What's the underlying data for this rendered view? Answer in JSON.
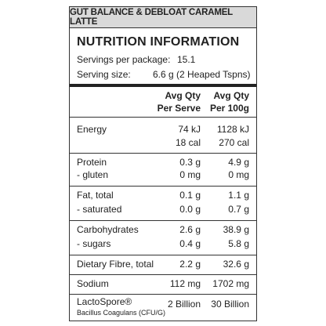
{
  "product_title": "GUT BALANCE & DEBLOAT CARAMEL LATTE",
  "heading": "NUTRITION INFORMATION",
  "servings": {
    "label": "Servings per package:",
    "value": "15.1"
  },
  "serving_size": {
    "label": "Serving size:",
    "value": "6.6 g  (2 Heaped Tspns)"
  },
  "columns": {
    "per_serve_line1": "Avg Qty",
    "per_serve_line2": "Per Serve",
    "per_100g_line1": "Avg Qty",
    "per_100g_line2": "Per 100g"
  },
  "energy": {
    "label": "Energy",
    "serve_kj": "74 kJ",
    "serve_cal": "18 cal",
    "g100_kj": "1128 kJ",
    "g100_cal": "270 cal"
  },
  "protein": {
    "label": "Protein",
    "serve": "0.3 g",
    "g100": "4.9 g"
  },
  "gluten": {
    "label": "-  gluten",
    "serve": "0 mg",
    "g100": "0 mg"
  },
  "fat_total": {
    "label": "Fat, total",
    "serve": "0.1 g",
    "g100": "1.1 g"
  },
  "saturated": {
    "label": "-  saturated",
    "serve": "0.0 g",
    "g100": "0.7 g"
  },
  "carbohydrates": {
    "label": "Carbohydrates",
    "serve": "2.6 g",
    "g100": "38.9 g"
  },
  "sugars": {
    "label": "-  sugars",
    "serve": "0.4 g",
    "g100": "5.8 g"
  },
  "dietary_fibre": {
    "label": "Dietary Fibre, total",
    "serve": "2.2 g",
    "g100": "32.6 g"
  },
  "sodium": {
    "label": "Sodium",
    "serve": "112 mg",
    "g100": "1702 mg"
  },
  "lactospore": {
    "label": "LactoSpore®",
    "sublabel": "Bacillus Coagulans (CFU/G)",
    "serve": "2 Billion",
    "g100": "30 Billion"
  }
}
